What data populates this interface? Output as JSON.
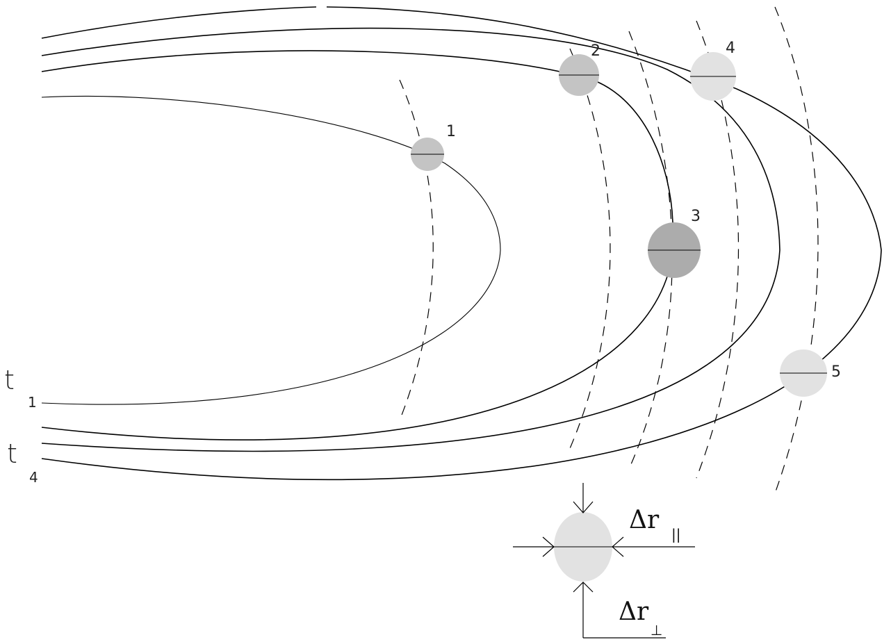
{
  "particles": [
    {
      "label": "1",
      "fill": "#c4c4c4"
    },
    {
      "label": "2",
      "fill": "#c4c4c4"
    },
    {
      "label": "3",
      "fill": "#acacac"
    },
    {
      "label": "4",
      "fill": "#e2e2e2"
    },
    {
      "label": "5",
      "fill": "#e2e2e2"
    }
  ],
  "time_labels": [
    {
      "symbol": "t",
      "subscript": "1"
    },
    {
      "symbol": "t",
      "subscript": "4"
    }
  ],
  "deformed_particle": {
    "fill": "#e2e2e2"
  },
  "delta_labels": {
    "parallel": {
      "symbol": "Δr",
      "subscript": "||"
    },
    "perpendicular": {
      "symbol": "Δr",
      "subscript": "⊥"
    }
  }
}
